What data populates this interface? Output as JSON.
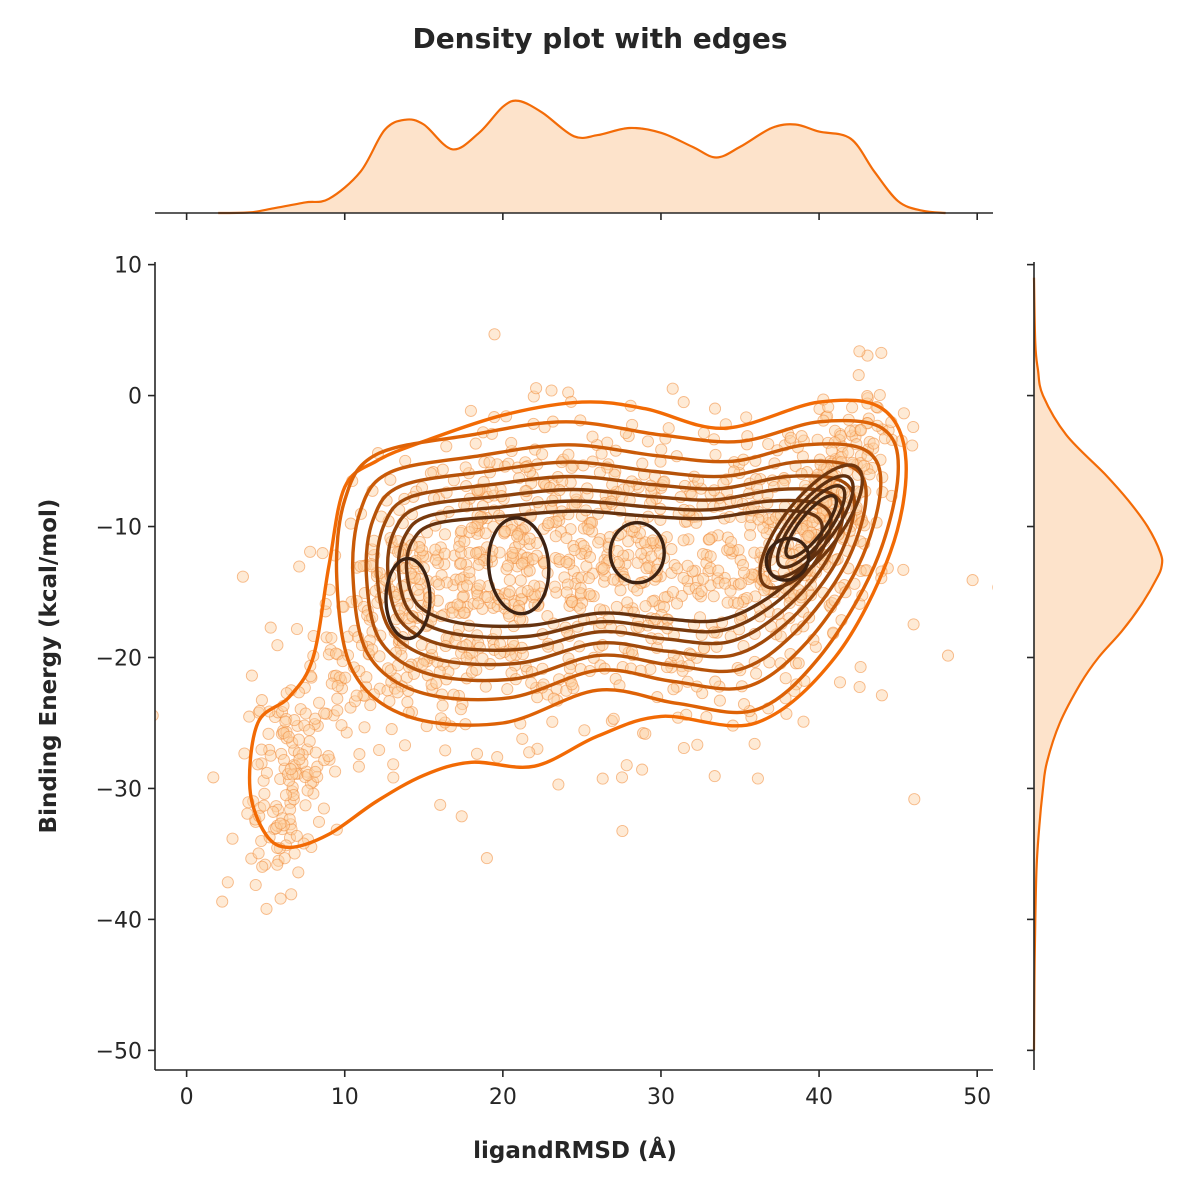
{
  "chart_data": {
    "type": "scatter",
    "title": "Density plot with edges",
    "xlabel": "ligandRMSD (Å)",
    "ylabel": "Binding Energy (kcal/mol)",
    "xlim": [
      -2,
      51
    ],
    "ylim": [
      -51.5,
      10.2
    ],
    "xticks": [
      0,
      10,
      20,
      30,
      40,
      50
    ],
    "yticks": [
      10,
      0,
      -10,
      -20,
      -30,
      -40,
      -50
    ],
    "grid": false,
    "legend": "none",
    "colors": {
      "points_fill": "#fdd0a2",
      "points_edge": "#f08a38",
      "kde_outer": "#f26a04",
      "kde_inner": "#3d2212",
      "marginal_fill": "#fde3cb",
      "marginal_line": "#f36b07"
    },
    "kde_levels": 9,
    "clusters": [
      {
        "x": 14,
        "y": -15.5
      },
      {
        "x": 21,
        "y": -13
      },
      {
        "x": 28.5,
        "y": -12
      },
      {
        "x": 38,
        "y": -12
      },
      {
        "x": 41,
        "y": -8.5
      }
    ],
    "marginal_x_density": [
      [
        2,
        0
      ],
      [
        4,
        0.005
      ],
      [
        5.5,
        0.04
      ],
      [
        7.5,
        0.09
      ],
      [
        9,
        0.12
      ],
      [
        11,
        0.35
      ],
      [
        12.5,
        0.7
      ],
      [
        13.8,
        0.79
      ],
      [
        15,
        0.75
      ],
      [
        16.8,
        0.54
      ],
      [
        18.5,
        0.68
      ],
      [
        20,
        0.9
      ],
      [
        21,
        0.95
      ],
      [
        22.5,
        0.85
      ],
      [
        24.5,
        0.65
      ],
      [
        26,
        0.66
      ],
      [
        28,
        0.72
      ],
      [
        30,
        0.68
      ],
      [
        32,
        0.56
      ],
      [
        33.5,
        0.47
      ],
      [
        35,
        0.56
      ],
      [
        37,
        0.72
      ],
      [
        38.5,
        0.75
      ],
      [
        40,
        0.69
      ],
      [
        42,
        0.63
      ],
      [
        43.5,
        0.35
      ],
      [
        45,
        0.1
      ],
      [
        46.5,
        0.02
      ],
      [
        48,
        0
      ]
    ],
    "marginal_y_density": [
      [
        9,
        0
      ],
      [
        4,
        0.01
      ],
      [
        2,
        0.03
      ],
      [
        0,
        0.07
      ],
      [
        -3,
        0.25
      ],
      [
        -6,
        0.55
      ],
      [
        -8,
        0.73
      ],
      [
        -10,
        0.88
      ],
      [
        -12,
        0.98
      ],
      [
        -13,
        0.99
      ],
      [
        -14,
        0.95
      ],
      [
        -16,
        0.83
      ],
      [
        -18,
        0.68
      ],
      [
        -20,
        0.5
      ],
      [
        -22,
        0.36
      ],
      [
        -25,
        0.2
      ],
      [
        -28,
        0.1
      ],
      [
        -30,
        0.07
      ],
      [
        -33,
        0.04
      ],
      [
        -36,
        0.02
      ],
      [
        -40,
        0.01
      ],
      [
        -45,
        0.003
      ],
      [
        -50,
        0
      ]
    ]
  }
}
